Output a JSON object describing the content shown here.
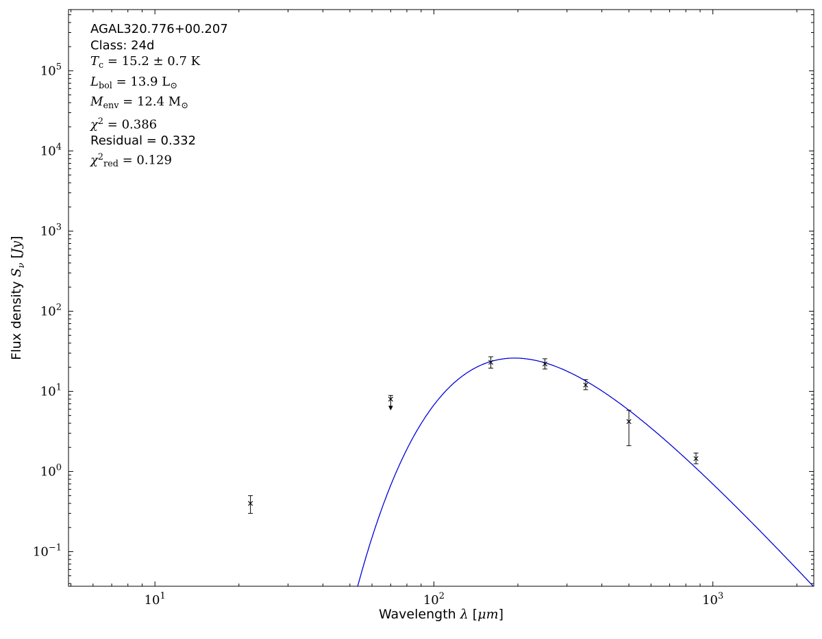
{
  "figure": {
    "background": "#ffffff",
    "frame_color": "#000000"
  },
  "fit_annotation": {
    "lines": [
      {
        "font": "sans",
        "segments": [
          {
            "t": "AGAL320.776+00.207"
          }
        ]
      },
      {
        "font": "sans",
        "segments": [
          {
            "t": "Class: 24d"
          }
        ]
      },
      {
        "font": "serif",
        "segments": [
          {
            "t": "T",
            "s": "i"
          },
          {
            "t": "c",
            "s": "sub"
          },
          {
            "t": " = 15.2 ± 0.7 K"
          }
        ]
      },
      {
        "font": "serif",
        "segments": [
          {
            "t": "L",
            "s": "i"
          },
          {
            "t": "bol",
            "s": "sub"
          },
          {
            "t": " = 13.9 L"
          },
          {
            "t": "⊙",
            "s": "sub"
          }
        ]
      },
      {
        "font": "serif",
        "segments": [
          {
            "t": "M",
            "s": "i"
          },
          {
            "t": "env",
            "s": "sub"
          },
          {
            "t": " = 12.4 M"
          },
          {
            "t": "⊙",
            "s": "sub"
          }
        ]
      },
      {
        "font": "serif",
        "segments": [
          {
            "t": "χ",
            "s": "i"
          },
          {
            "t": "2",
            "s": "sup"
          },
          {
            "t": " = 0.386"
          }
        ]
      },
      {
        "font": "sans",
        "segments": [
          {
            "t": "Residual = 0.332"
          }
        ]
      },
      {
        "font": "serif",
        "segments": [
          {
            "t": "χ",
            "s": "i"
          },
          {
            "t": "2",
            "s": "sup"
          },
          {
            "t": "red",
            "s": "sub"
          },
          {
            "t": " = 0.129"
          }
        ]
      }
    ],
    "values": {
      "source_name": "AGAL320.776+00.207",
      "class": "24d",
      "T_c": "15.2 ± 0.7 K",
      "L_bol": "13.9 L⊙",
      "M_env": "12.4 M⊙",
      "chi2": 0.386,
      "residual": 0.332,
      "chi2_red": 0.129
    }
  },
  "chart_data": {
    "type": "scatter",
    "title": "",
    "xlabel": "Wavelength λ [μm]",
    "ylabel": "Flux density Sν [Jy]",
    "xscale": "log",
    "yscale": "log",
    "xlim": [
      4.9,
      2300
    ],
    "ylim": [
      0.037,
      580000
    ],
    "xticks": [
      10,
      100,
      1000
    ],
    "yticks": [
      0.1,
      1,
      10,
      100,
      1000,
      10000,
      100000
    ],
    "grid": false,
    "legend": false,
    "xlabel_segments": [
      {
        "t": "Wavelength "
      },
      {
        "t": "λ",
        "s": "i"
      },
      {
        "t": " ["
      },
      {
        "t": "μm",
        "s": "i"
      },
      {
        "t": "]"
      }
    ],
    "ylabel_segments": [
      {
        "t": "Flux density "
      },
      {
        "t": "S",
        "s": "i"
      },
      {
        "t": "ν",
        "s": "subi"
      },
      {
        "t": " ["
      },
      {
        "t": "Jy",
        "s": "i"
      },
      {
        "t": "]"
      }
    ],
    "series": [
      {
        "name": "photometry",
        "marker": "x",
        "color": "#000000",
        "points": [
          {
            "wavelength_um": 22,
            "flux_jy": 0.4,
            "err_plus": 0.1,
            "err_minus": 0.1
          },
          {
            "wavelength_um": 70,
            "flux_jy": 8.0,
            "err_plus": 0.9,
            "err_minus": 0.0,
            "upper_limit": true
          },
          {
            "wavelength_um": 160,
            "flux_jy": 23.0,
            "err_plus": 4.0,
            "err_minus": 3.5
          },
          {
            "wavelength_um": 250,
            "flux_jy": 22.0,
            "err_plus": 3.5,
            "err_minus": 3.0
          },
          {
            "wavelength_um": 350,
            "flux_jy": 12.0,
            "err_plus": 2.0,
            "err_minus": 1.5
          },
          {
            "wavelength_um": 500,
            "flux_jy": 4.2,
            "err_plus": 1.6,
            "err_minus": 2.1
          },
          {
            "wavelength_um": 870,
            "flux_jy": 1.45,
            "err_plus": 0.25,
            "err_minus": 0.2
          }
        ]
      }
    ],
    "model_curve": {
      "name": "greybody-fit",
      "type": "modified_blackbody",
      "T_K": 15.2,
      "beta": 1.9,
      "peak_flux_jy": 26,
      "peak_wavelength_um": 195,
      "color": "#0000dd"
    }
  }
}
